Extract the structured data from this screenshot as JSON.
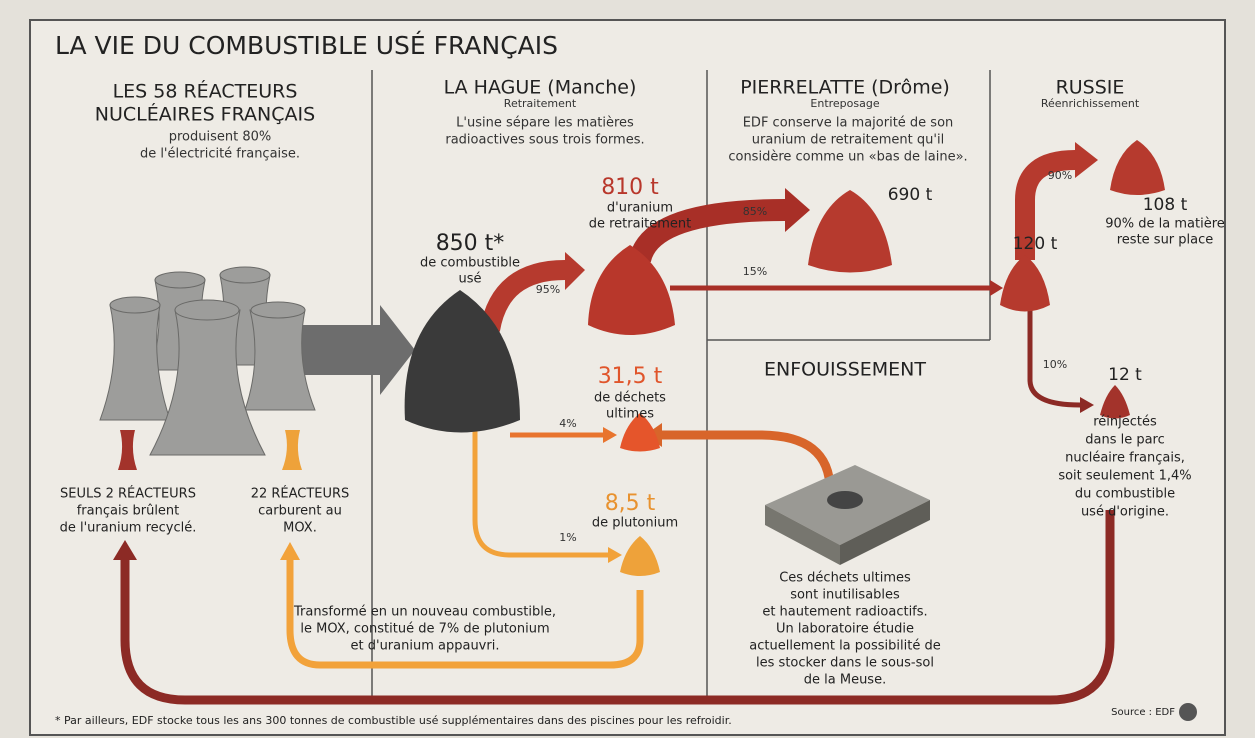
{
  "title": "LA VIE DU COMBUSTIBLE USÉ FRANÇAIS",
  "sections": [
    {
      "title": [
        "LES 58 RÉACTEURS",
        "NUCLÉAIRES FRANÇAIS"
      ],
      "text": [
        "produisent 80%",
        "de l'électricité française."
      ]
    },
    {
      "title": [
        "LA HAGUE (Manche)"
      ],
      "subtitle": "Retraitement",
      "text": [
        "L'usine sépare les matières",
        "radioactives sous trois formes."
      ]
    },
    {
      "title": [
        "PIERRELATTE (Drôme)"
      ],
      "subtitle": "Entreposage",
      "text": [
        "EDF conserve la majorité de son",
        "uranium de retraitement qu'il",
        "considère comme un «bas de laine»."
      ]
    },
    {
      "title": [
        "RUSSIE"
      ],
      "subtitle": "Réenrichissement"
    },
    {
      "title": [
        "ENFOUISSEMENT"
      ],
      "text": [
        "Ces déchets ultimes",
        "sont inutilisables",
        "et hautement radioactifs.",
        "Un laboratoire étudie",
        "actuellement la possibilité de",
        "les stocker dans le sous-sol",
        "de la Meuse."
      ]
    }
  ],
  "nodes": [
    {
      "amount": "850 t*",
      "text": [
        "de combustible",
        "usé"
      ]
    },
    {
      "amount": "810 t",
      "text": [
        "d'uranium",
        "de retraitement"
      ]
    },
    {
      "amount": "690 t"
    },
    {
      "amount": "120 t"
    },
    {
      "amount": "108 t",
      "text": [
        "90% de la matière",
        "reste sur place"
      ]
    },
    {
      "amount": "12 t",
      "text": [
        "réinjectés",
        "dans le parc",
        "nucléaire français,",
        "soit seulement 1,4%",
        "du combustible",
        "usé d'origine."
      ]
    },
    {
      "amount": "31,5 t",
      "text": [
        "de déchets",
        "ultimes"
      ]
    },
    {
      "amount": "8,5 t",
      "text": [
        "de plutonium"
      ]
    }
  ],
  "flows": [
    "95%",
    "85%",
    "15%",
    "90%",
    "10%",
    "4%",
    "1%"
  ],
  "reactors": [
    {
      "text": [
        "SEULS 2 RÉACTEURS",
        "français brûlent",
        "de l'uranium recyclé."
      ]
    },
    {
      "text": [
        "22 RÉACTEURS",
        "carburent au",
        "MOX."
      ]
    }
  ],
  "mox_note": [
    "Transformé en un nouveau combustible,",
    "le MOX, constitué de 7% de plutonium",
    "et d'uranium appauvri."
  ],
  "footnote": "* Par ailleurs, EDF stocke tous les ans 300 tonnes de combustible usé supplémentaires dans des piscines pour les refroidir.",
  "source": "Source : EDF"
}
